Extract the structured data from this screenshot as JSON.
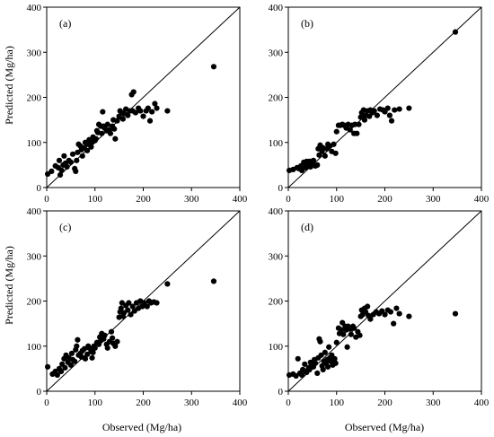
{
  "figure": {
    "ylabel": "Predicted (Mg/ha)",
    "xlabel": "Observed (Mg/ha)"
  },
  "chart_data": [
    {
      "type": "scatter",
      "label": "(a)",
      "xlabel": "",
      "ylabel": "Predicted (Mg/ha)",
      "xlim": [
        0,
        400
      ],
      "ylim": [
        0,
        400
      ],
      "xticks": [
        0,
        100,
        200,
        300,
        400
      ],
      "yticks": [
        0,
        100,
        200,
        300,
        400
      ],
      "reference_line": "1:1",
      "points": [
        [
          2,
          30
        ],
        [
          10,
          36
        ],
        [
          18,
          48
        ],
        [
          24,
          44
        ],
        [
          26,
          60
        ],
        [
          28,
          28
        ],
        [
          31,
          38
        ],
        [
          34,
          50
        ],
        [
          36,
          70
        ],
        [
          39,
          54
        ],
        [
          42,
          46
        ],
        [
          46,
          60
        ],
        [
          50,
          56
        ],
        [
          54,
          74
        ],
        [
          58,
          42
        ],
        [
          60,
          36
        ],
        [
          62,
          60
        ],
        [
          64,
          78
        ],
        [
          66,
          96
        ],
        [
          70,
          92
        ],
        [
          72,
          84
        ],
        [
          74,
          70
        ],
        [
          78,
          88
        ],
        [
          80,
          100
        ],
        [
          84,
          82
        ],
        [
          86,
          96
        ],
        [
          88,
          106
        ],
        [
          92,
          90
        ],
        [
          94,
          100
        ],
        [
          96,
          112
        ],
        [
          100,
          104
        ],
        [
          102,
          108
        ],
        [
          104,
          126
        ],
        [
          106,
          122
        ],
        [
          108,
          140
        ],
        [
          112,
          136
        ],
        [
          114,
          120
        ],
        [
          116,
          168
        ],
        [
          118,
          136
        ],
        [
          120,
          132
        ],
        [
          124,
          126
        ],
        [
          126,
          140
        ],
        [
          130,
          128
        ],
        [
          132,
          120
        ],
        [
          136,
          136
        ],
        [
          138,
          150
        ],
        [
          140,
          130
        ],
        [
          142,
          108
        ],
        [
          146,
          148
        ],
        [
          150,
          158
        ],
        [
          152,
          170
        ],
        [
          156,
          166
        ],
        [
          158,
          152
        ],
        [
          160,
          164
        ],
        [
          164,
          174
        ],
        [
          168,
          160
        ],
        [
          172,
          170
        ],
        [
          176,
          206
        ],
        [
          178,
          170
        ],
        [
          180,
          212
        ],
        [
          184,
          166
        ],
        [
          190,
          176
        ],
        [
          194,
          170
        ],
        [
          200,
          158
        ],
        [
          206,
          170
        ],
        [
          210,
          176
        ],
        [
          214,
          148
        ],
        [
          218,
          168
        ],
        [
          224,
          186
        ],
        [
          228,
          176
        ],
        [
          250,
          170
        ],
        [
          346,
          268
        ]
      ]
    },
    {
      "type": "scatter",
      "label": "(b)",
      "xlabel": "",
      "ylabel": "",
      "xlim": [
        0,
        400
      ],
      "ylim": [
        0,
        400
      ],
      "xticks": [
        0,
        100,
        200,
        300,
        400
      ],
      "yticks": [
        0,
        100,
        200,
        300,
        400
      ],
      "reference_line": "1:1",
      "points": [
        [
          2,
          38
        ],
        [
          10,
          40
        ],
        [
          18,
          44
        ],
        [
          22,
          42
        ],
        [
          26,
          48
        ],
        [
          28,
          38
        ],
        [
          32,
          56
        ],
        [
          34,
          50
        ],
        [
          36,
          44
        ],
        [
          38,
          58
        ],
        [
          40,
          50
        ],
        [
          42,
          52
        ],
        [
          44,
          58
        ],
        [
          46,
          46
        ],
        [
          50,
          54
        ],
        [
          52,
          60
        ],
        [
          56,
          48
        ],
        [
          60,
          50
        ],
        [
          62,
          86
        ],
        [
          64,
          72
        ],
        [
          66,
          94
        ],
        [
          70,
          80
        ],
        [
          72,
          88
        ],
        [
          76,
          70
        ],
        [
          80,
          86
        ],
        [
          82,
          96
        ],
        [
          86,
          92
        ],
        [
          90,
          80
        ],
        [
          94,
          96
        ],
        [
          98,
          76
        ],
        [
          100,
          124
        ],
        [
          104,
          138
        ],
        [
          108,
          138
        ],
        [
          112,
          140
        ],
        [
          116,
          138
        ],
        [
          120,
          132
        ],
        [
          124,
          140
        ],
        [
          128,
          128
        ],
        [
          132,
          138
        ],
        [
          136,
          120
        ],
        [
          138,
          140
        ],
        [
          142,
          120
        ],
        [
          146,
          140
        ],
        [
          150,
          156
        ],
        [
          152,
          166
        ],
        [
          156,
          172
        ],
        [
          158,
          150
        ],
        [
          160,
          160
        ],
        [
          164,
          170
        ],
        [
          168,
          158
        ],
        [
          170,
          172
        ],
        [
          174,
          166
        ],
        [
          178,
          170
        ],
        [
          184,
          160
        ],
        [
          190,
          174
        ],
        [
          196,
          172
        ],
        [
          200,
          168
        ],
        [
          206,
          176
        ],
        [
          210,
          160
        ],
        [
          214,
          148
        ],
        [
          220,
          172
        ],
        [
          230,
          174
        ],
        [
          250,
          176
        ],
        [
          346,
          345
        ]
      ]
    },
    {
      "type": "scatter",
      "label": "(c)",
      "xlabel": "Observed (Mg/ha)",
      "ylabel": "Predicted (Mg/ha)",
      "xlim": [
        0,
        400
      ],
      "ylim": [
        0,
        400
      ],
      "xticks": [
        0,
        100,
        200,
        300,
        400
      ],
      "yticks": [
        0,
        100,
        200,
        300,
        400
      ],
      "reference_line": "1:1",
      "points": [
        [
          2,
          54
        ],
        [
          12,
          38
        ],
        [
          18,
          44
        ],
        [
          22,
          36
        ],
        [
          26,
          50
        ],
        [
          30,
          44
        ],
        [
          32,
          60
        ],
        [
          36,
          72
        ],
        [
          38,
          52
        ],
        [
          40,
          80
        ],
        [
          44,
          64
        ],
        [
          46,
          74
        ],
        [
          50,
          58
        ],
        [
          52,
          84
        ],
        [
          54,
          70
        ],
        [
          58,
          66
        ],
        [
          60,
          92
        ],
        [
          62,
          100
        ],
        [
          64,
          114
        ],
        [
          66,
          80
        ],
        [
          70,
          84
        ],
        [
          72,
          76
        ],
        [
          74,
          90
        ],
        [
          78,
          94
        ],
        [
          80,
          72
        ],
        [
          84,
          82
        ],
        [
          86,
          100
        ],
        [
          88,
          96
        ],
        [
          92,
          88
        ],
        [
          94,
          74
        ],
        [
          96,
          86
        ],
        [
          98,
          100
        ],
        [
          100,
          96
        ],
        [
          104,
          108
        ],
        [
          108,
          104
        ],
        [
          110,
          120
        ],
        [
          112,
          112
        ],
        [
          114,
          128
        ],
        [
          118,
          116
        ],
        [
          120,
          124
        ],
        [
          124,
          104
        ],
        [
          126,
          96
        ],
        [
          130,
          110
        ],
        [
          134,
          132
        ],
        [
          136,
          118
        ],
        [
          138,
          106
        ],
        [
          142,
          100
        ],
        [
          146,
          110
        ],
        [
          150,
          164
        ],
        [
          152,
          176
        ],
        [
          154,
          184
        ],
        [
          156,
          196
        ],
        [
          158,
          166
        ],
        [
          160,
          174
        ],
        [
          164,
          190
        ],
        [
          168,
          180
        ],
        [
          170,
          196
        ],
        [
          174,
          170
        ],
        [
          178,
          188
        ],
        [
          182,
          178
        ],
        [
          186,
          196
        ],
        [
          190,
          184
        ],
        [
          194,
          200
        ],
        [
          198,
          188
        ],
        [
          202,
          196
        ],
        [
          208,
          188
        ],
        [
          212,
          200
        ],
        [
          216,
          196
        ],
        [
          222,
          198
        ],
        [
          228,
          196
        ],
        [
          250,
          238
        ],
        [
          346,
          244
        ]
      ]
    },
    {
      "type": "scatter",
      "label": "(d)",
      "xlabel": "Observed (Mg/ha)",
      "ylabel": "",
      "xlim": [
        0,
        400
      ],
      "ylim": [
        0,
        400
      ],
      "xticks": [
        0,
        100,
        200,
        300,
        400
      ],
      "yticks": [
        0,
        100,
        200,
        300,
        400
      ],
      "reference_line": "1:1",
      "points": [
        [
          2,
          36
        ],
        [
          10,
          38
        ],
        [
          16,
          34
        ],
        [
          20,
          72
        ],
        [
          24,
          40
        ],
        [
          28,
          36
        ],
        [
          30,
          48
        ],
        [
          34,
          60
        ],
        [
          36,
          44
        ],
        [
          38,
          42
        ],
        [
          42,
          52
        ],
        [
          44,
          48
        ],
        [
          46,
          64
        ],
        [
          48,
          58
        ],
        [
          52,
          54
        ],
        [
          54,
          70
        ],
        [
          56,
          62
        ],
        [
          60,
          40
        ],
        [
          62,
          74
        ],
        [
          64,
          116
        ],
        [
          66,
          110
        ],
        [
          68,
          80
        ],
        [
          70,
          56
        ],
        [
          72,
          48
        ],
        [
          74,
          66
        ],
        [
          76,
          86
        ],
        [
          78,
          62
        ],
        [
          80,
          70
        ],
        [
          82,
          54
        ],
        [
          84,
          98
        ],
        [
          86,
          74
        ],
        [
          88,
          66
        ],
        [
          90,
          80
        ],
        [
          92,
          58
        ],
        [
          94,
          68
        ],
        [
          96,
          72
        ],
        [
          98,
          62
        ],
        [
          100,
          108
        ],
        [
          104,
          140
        ],
        [
          106,
          128
        ],
        [
          110,
          136
        ],
        [
          112,
          152
        ],
        [
          114,
          126
        ],
        [
          118,
          144
        ],
        [
          120,
          136
        ],
        [
          122,
          98
        ],
        [
          124,
          144
        ],
        [
          128,
          138
        ],
        [
          130,
          126
        ],
        [
          134,
          144
        ],
        [
          136,
          140
        ],
        [
          140,
          120
        ],
        [
          144,
          132
        ],
        [
          148,
          124
        ],
        [
          150,
          166
        ],
        [
          152,
          180
        ],
        [
          154,
          170
        ],
        [
          158,
          184
        ],
        [
          160,
          176
        ],
        [
          164,
          188
        ],
        [
          166,
          168
        ],
        [
          170,
          160
        ],
        [
          176,
          170
        ],
        [
          182,
          176
        ],
        [
          188,
          172
        ],
        [
          194,
          178
        ],
        [
          200,
          170
        ],
        [
          206,
          180
        ],
        [
          212,
          176
        ],
        [
          218,
          150
        ],
        [
          224,
          184
        ],
        [
          230,
          172
        ],
        [
          250,
          166
        ],
        [
          346,
          172
        ]
      ]
    }
  ]
}
